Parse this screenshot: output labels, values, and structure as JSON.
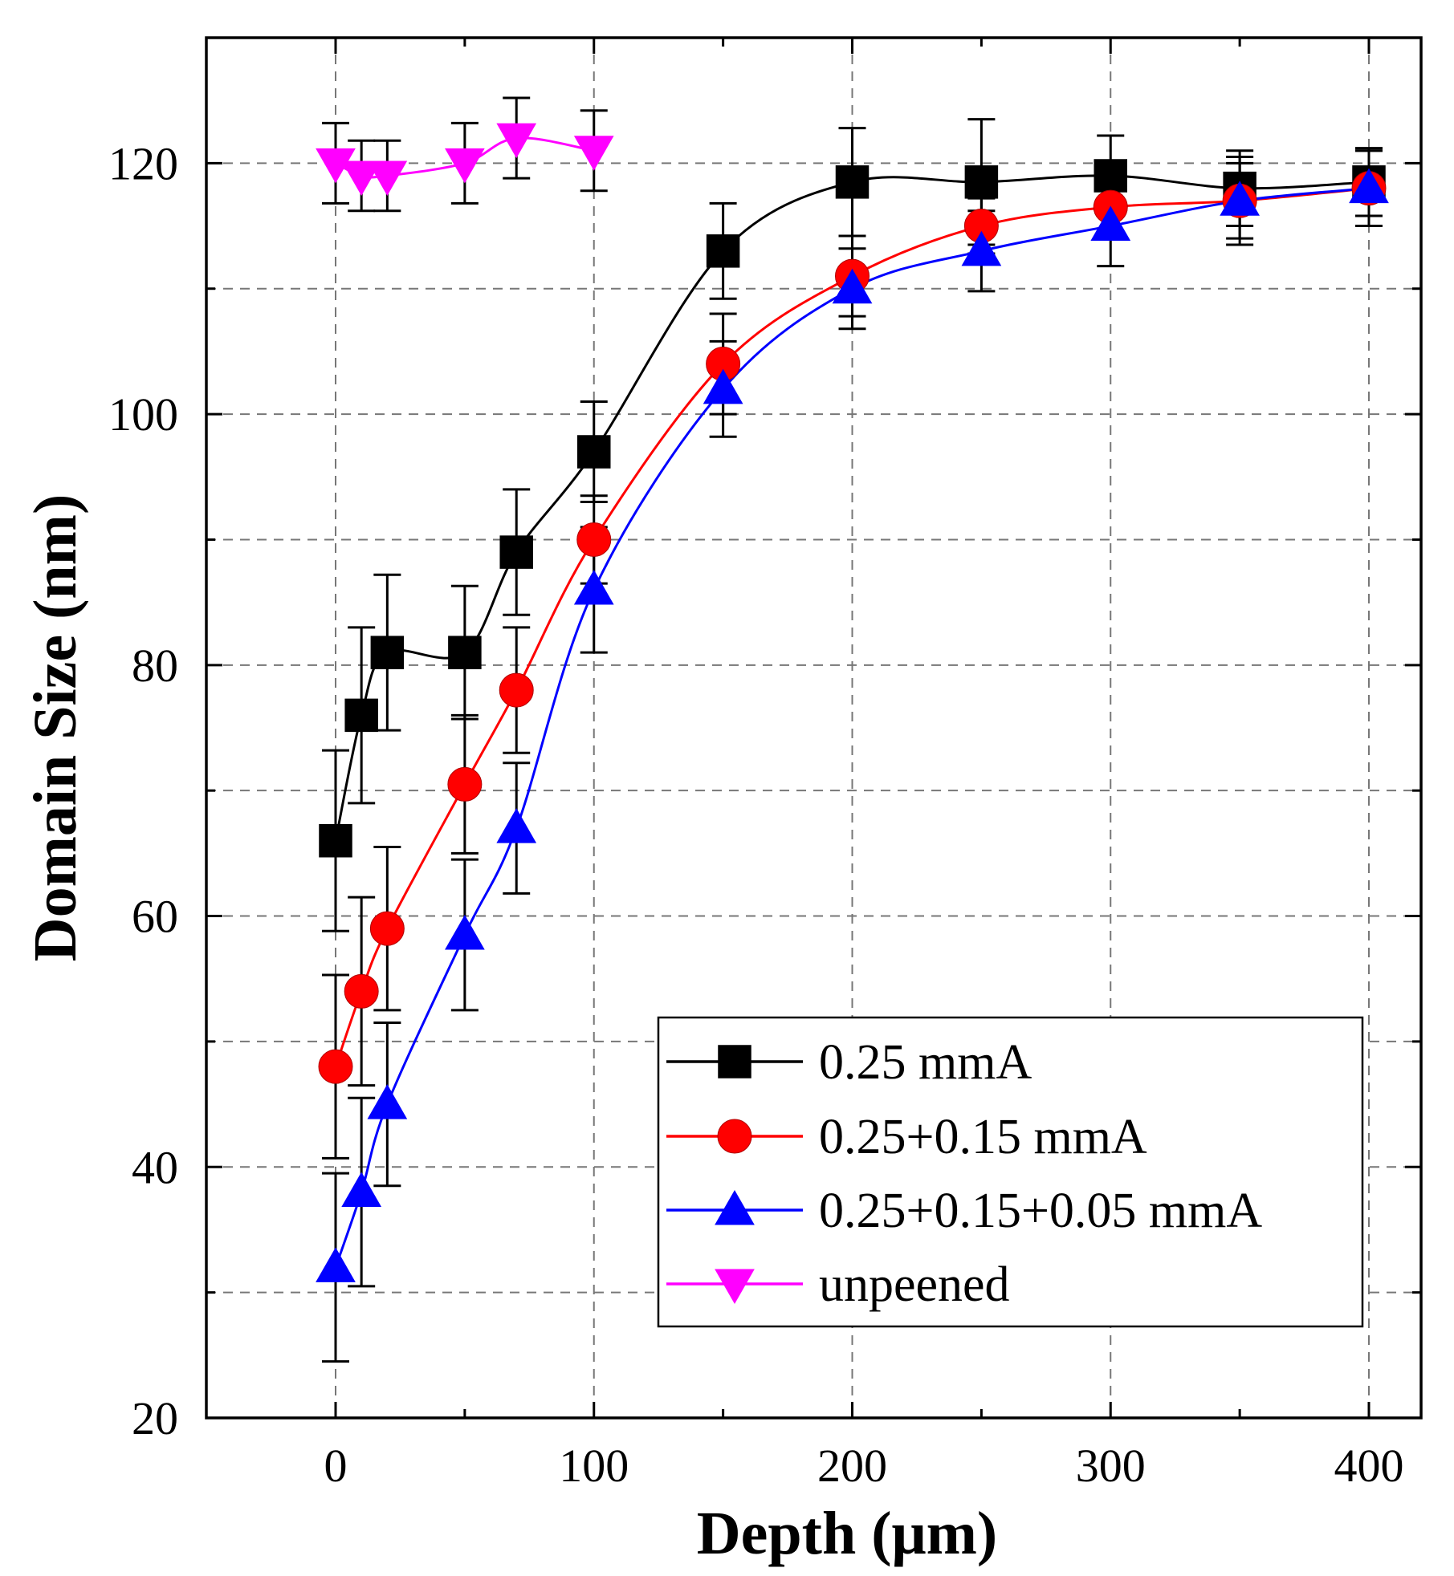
{
  "chart_data": {
    "type": "line",
    "title": "",
    "xlabel": "Depth (μm)",
    "ylabel": "Domain Size (nm)",
    "xlim": [
      -50,
      420
    ],
    "ylim": [
      20,
      130
    ],
    "x_ticks": [
      0,
      100,
      200,
      300,
      400
    ],
    "y_ticks": [
      20,
      40,
      60,
      80,
      100,
      120
    ],
    "x_tick_labels": [
      "0",
      "100",
      "200",
      "300",
      "400"
    ],
    "y_tick_labels": [
      "20",
      "40",
      "60",
      "80",
      "100",
      "120"
    ],
    "grid": true,
    "legend_position": "bottom-right",
    "series": [
      {
        "name": "0.25 mmA",
        "color": "#000000",
        "marker": "square",
        "x": [
          0,
          10,
          20,
          50,
          70,
          100,
          150,
          200,
          250,
          300,
          350,
          400
        ],
        "y": [
          66,
          76,
          81,
          81,
          89,
          97,
          113,
          118.5,
          118.5,
          119,
          118,
          118.5
        ],
        "error": [
          7.2,
          7,
          6.2,
          5.3,
          5,
          4,
          3.8,
          4.3,
          5,
          3.2,
          3,
          2.7
        ]
      },
      {
        "name": "0.25+0.15 mmA",
        "color": "#ff0000",
        "marker": "circle",
        "x": [
          0,
          10,
          20,
          50,
          70,
          100,
          150,
          200,
          250,
          300,
          350,
          400
        ],
        "y": [
          48,
          54,
          59,
          70.5,
          78,
          90,
          104,
          111,
          115,
          116.5,
          117,
          118
        ],
        "error": [
          7.3,
          7.5,
          6.5,
          5.5,
          5,
          3.5,
          4,
          3.2,
          2.2,
          2.2,
          3.5,
          3
        ]
      },
      {
        "name": "0.25+0.15+0.05 mmA",
        "color": "#0000ff",
        "marker": "triangle-up",
        "x": [
          0,
          10,
          20,
          50,
          70,
          100,
          150,
          200,
          250,
          300,
          350,
          400
        ],
        "y": [
          32,
          38,
          45,
          58.5,
          67,
          86,
          102,
          110,
          113,
          115,
          117,
          118
        ],
        "error": [
          7.5,
          7.5,
          6.5,
          6,
          5.2,
          5,
          3.8,
          3.2,
          3.2,
          3.2,
          3,
          3
        ]
      },
      {
        "name": "unpeened",
        "color": "#ff00ff",
        "marker": "triangle-down",
        "x": [
          0,
          10,
          20,
          50,
          70,
          100
        ],
        "y": [
          120,
          119,
          119,
          120,
          122,
          121
        ],
        "error": [
          3.2,
          2.8,
          2.8,
          3.2,
          3.2,
          3.2
        ]
      }
    ]
  }
}
